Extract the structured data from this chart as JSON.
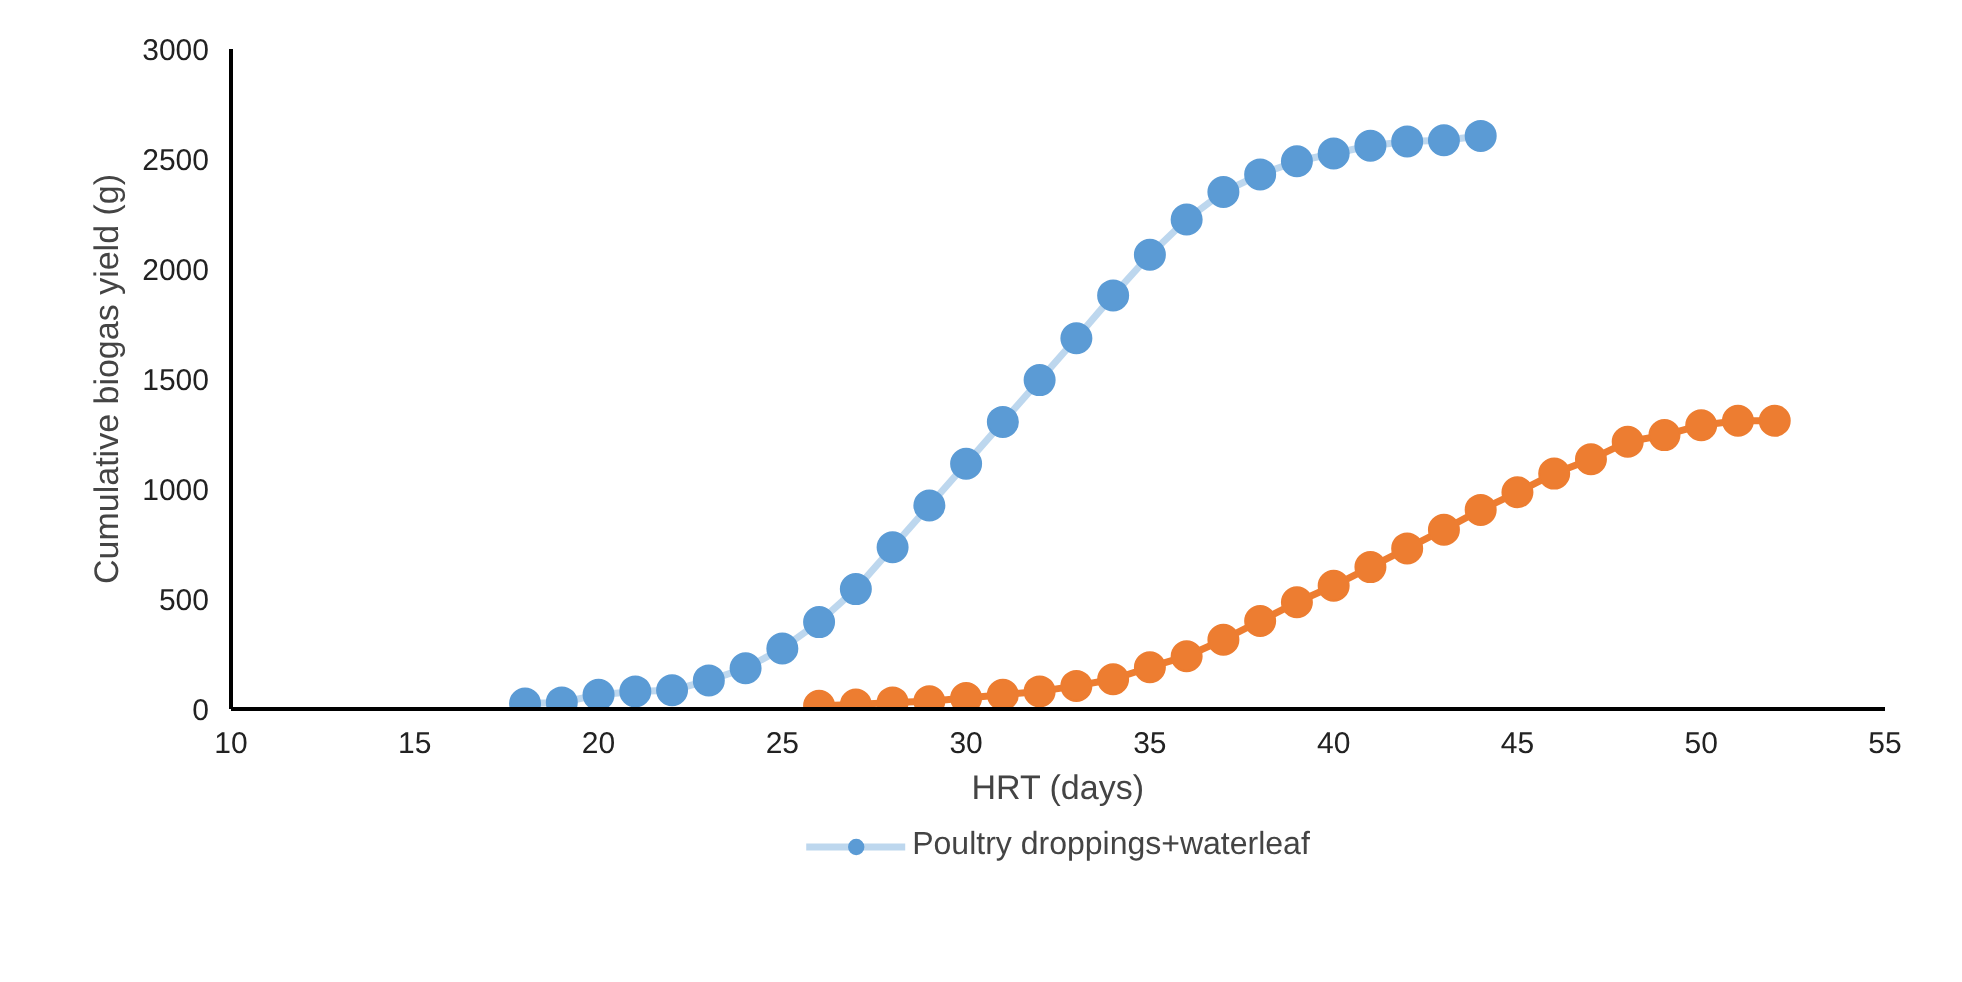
{
  "chart_data": {
    "type": "line",
    "xlabel": "HRT (days)",
    "ylabel": "Cumulative biogas yield (g)",
    "xlim": [
      10,
      55
    ],
    "xticks": [
      10,
      15,
      20,
      25,
      30,
      35,
      40,
      45,
      50,
      55
    ],
    "ylim": [
      0,
      3000
    ],
    "yticks": [
      0,
      500,
      1000,
      1500,
      2000,
      2500,
      3000
    ],
    "grid": false,
    "legend": "bottom",
    "marker": "circle",
    "line_style": "solid",
    "series": [
      {
        "name": "Poultry droppings+waterleaf",
        "color": "#5b9bd5",
        "x": [
          18,
          19,
          20,
          21,
          22,
          23,
          24,
          25,
          26,
          27,
          28,
          29,
          30,
          31,
          32,
          33,
          34,
          35,
          36,
          37,
          38,
          39,
          40,
          41,
          42,
          43,
          44
        ],
        "values": [
          25,
          30,
          65,
          80,
          85,
          130,
          185,
          275,
          395,
          545,
          735,
          925,
          1115,
          1305,
          1495,
          1685,
          1880,
          2065,
          2225,
          2350,
          2430,
          2490,
          2525,
          2560,
          2580,
          2585,
          2605
        ]
      },
      {
        "color": "#ed7d31",
        "x": [
          26,
          27,
          28,
          29,
          30,
          31,
          32,
          33,
          34,
          35,
          36,
          37,
          38,
          39,
          40,
          41,
          42,
          43,
          44,
          45,
          46,
          47,
          48,
          49,
          50,
          51,
          52
        ],
        "values": [
          15,
          20,
          30,
          35,
          50,
          65,
          80,
          105,
          135,
          190,
          240,
          315,
          400,
          485,
          560,
          645,
          730,
          815,
          905,
          985,
          1070,
          1135,
          1215,
          1245,
          1290,
          1310,
          1310
        ]
      }
    ]
  }
}
